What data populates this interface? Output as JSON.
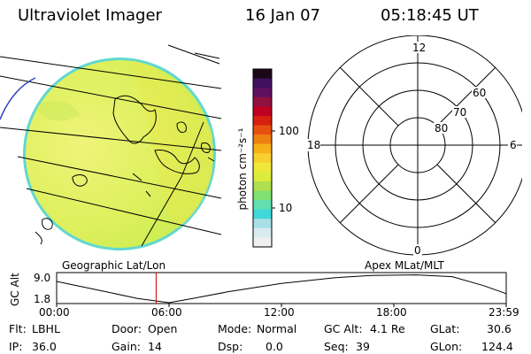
{
  "header": {
    "title": "Ultraviolet Imager",
    "date": "16 Jan 07",
    "time": "05:18:45 UT"
  },
  "colorbar": {
    "unit": "photon cm⁻²s⁻¹",
    "tick_labels": [
      "100",
      "10"
    ],
    "palette": [
      "#f0f0f0",
      "#d8ecef",
      "#a8e0e6",
      "#40d8d8",
      "#60e0b0",
      "#80e070",
      "#b0e050",
      "#dcec3c",
      "#f0e838",
      "#f7d030",
      "#f7b018",
      "#f08010",
      "#e85010",
      "#d82010",
      "#c00020",
      "#901040",
      "#601060",
      "#401060",
      "#1a0818"
    ]
  },
  "globe": {
    "label": "Geographic Lat/Lon",
    "colors": {
      "disk": "#dcef5a",
      "coast": "#000000"
    }
  },
  "polar": {
    "label": "Apex MLat/MLT",
    "lat_labels": [
      "80",
      "70",
      "60"
    ],
    "mlt_labels": [
      "12",
      "18",
      "6",
      "0"
    ]
  },
  "altitude_plot": {
    "ylabel": "GC Alt",
    "y_ticks": [
      "9.0",
      "1.8"
    ],
    "x_ticks": [
      "00:00",
      "06:00",
      "12:00",
      "18:00",
      "23:59"
    ],
    "current_time_fraction": 0.2213,
    "marker_color": "#cc0000"
  },
  "status": {
    "flt_label": "Flt:",
    "flt_value": "LBHL",
    "ip_label": "IP:",
    "ip_value": "36.0",
    "door_label": "Door:",
    "door_value": "Open",
    "gain_label": "Gain:",
    "gain_value": "14",
    "mode_label": "Mode:",
    "mode_value": "Normal",
    "dsp_label": "Dsp:",
    "dsp_value": "0.0",
    "gcalt_label": "GC Alt:",
    "gcalt_value": "4.1 Re",
    "seq_label": "Seq:",
    "seq_value": "39",
    "glat_label": "GLat:",
    "glat_value": "30.6",
    "glon_label": "GLon:",
    "glon_value": "124.4"
  }
}
